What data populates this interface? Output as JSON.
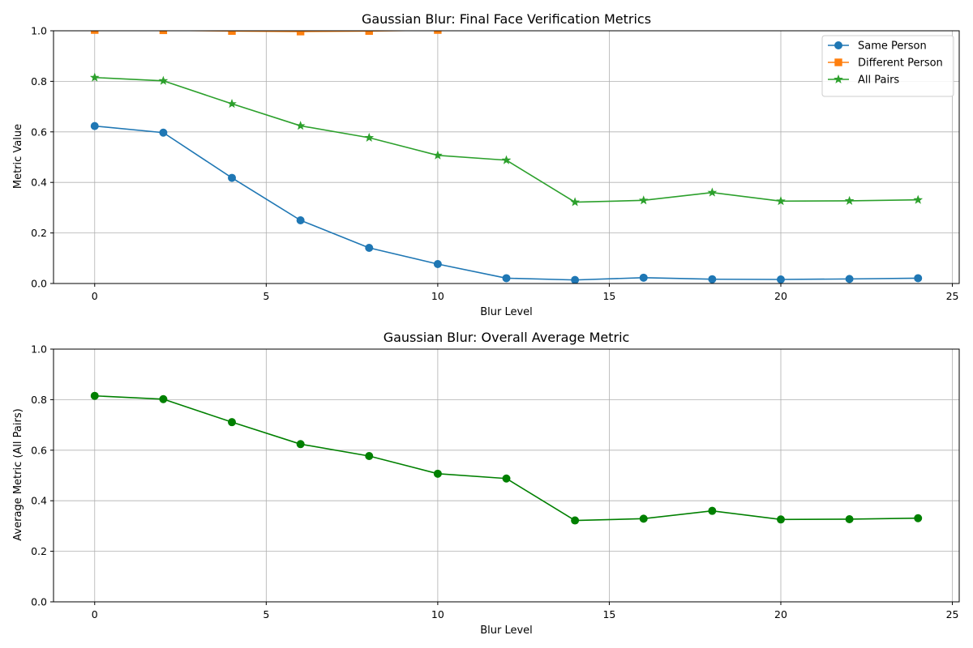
{
  "chart_data": [
    {
      "type": "line",
      "title": "Gaussian Blur: Final Face Verification Metrics",
      "xlabel": "Blur Level",
      "ylabel": "Metric Value",
      "xlim": [
        -1.2,
        25.2
      ],
      "ylim": [
        0,
        1.0
      ],
      "xticks": [
        0,
        5,
        10,
        15,
        20,
        25
      ],
      "yticks": [
        0.0,
        0.2,
        0.4,
        0.6,
        0.8,
        1.0
      ],
      "xtick_labels": [
        "0",
        "5",
        "10",
        "15",
        "20",
        "25"
      ],
      "ytick_labels": [
        "0.0",
        "0.2",
        "0.4",
        "0.6",
        "0.8",
        "1.0"
      ],
      "grid": true,
      "legend_position": "top-right",
      "series": [
        {
          "name": "Same Person",
          "color": "#1f77b4",
          "marker": "circle",
          "x": [
            0,
            2,
            4,
            6,
            8,
            10,
            12,
            14,
            16,
            18,
            20,
            22,
            24
          ],
          "y": [
            0.623,
            0.597,
            0.418,
            0.25,
            0.141,
            0.077,
            0.021,
            0.014,
            0.023,
            0.017,
            0.016,
            0.018,
            0.021
          ]
        },
        {
          "name": "Different Person",
          "color": "#ff7f0e",
          "marker": "square",
          "x": [
            0,
            2,
            4,
            6,
            8,
            10
          ],
          "y": [
            1.003,
            1.002,
            0.999,
            0.997,
            0.999,
            1.003
          ]
        },
        {
          "name": "All Pairs",
          "color": "#2ca02c",
          "marker": "star",
          "x": [
            0,
            2,
            4,
            6,
            8,
            10,
            12,
            14,
            16,
            18,
            20,
            22,
            24
          ],
          "y": [
            0.815,
            0.802,
            0.711,
            0.624,
            0.577,
            0.507,
            0.488,
            0.322,
            0.329,
            0.36,
            0.326,
            0.327,
            0.331
          ]
        }
      ]
    },
    {
      "type": "line",
      "title": "Gaussian Blur: Overall Average Metric",
      "xlabel": "Blur Level",
      "ylabel": "Average Metric (All Pairs)",
      "xlim": [
        -1.2,
        25.2
      ],
      "ylim": [
        0,
        1.0
      ],
      "xticks": [
        0,
        5,
        10,
        15,
        20,
        25
      ],
      "yticks": [
        0.0,
        0.2,
        0.4,
        0.6,
        0.8,
        1.0
      ],
      "xtick_labels": [
        "0",
        "5",
        "10",
        "15",
        "20",
        "25"
      ],
      "ytick_labels": [
        "0.0",
        "0.2",
        "0.4",
        "0.6",
        "0.8",
        "1.0"
      ],
      "grid": true,
      "series": [
        {
          "color": "#008000",
          "marker": "circle",
          "x": [
            0,
            2,
            4,
            6,
            8,
            10,
            12,
            14,
            16,
            18,
            20,
            22,
            24
          ],
          "y": [
            0.815,
            0.802,
            0.711,
            0.624,
            0.577,
            0.507,
            0.488,
            0.322,
            0.329,
            0.36,
            0.326,
            0.327,
            0.331
          ]
        }
      ]
    }
  ]
}
